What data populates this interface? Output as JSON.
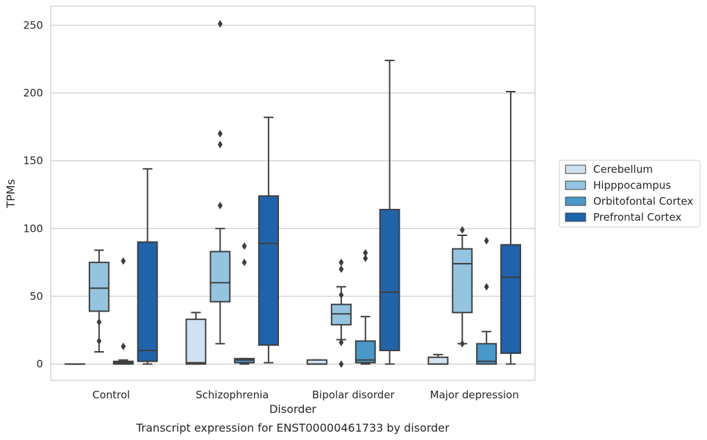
{
  "chart_data": {
    "type": "box",
    "caption": "Transcript expression for ENST00000461733 by disorder",
    "xlabel": "Disorder",
    "ylabel": "TPMs",
    "ylim": [
      -12,
      264
    ],
    "yticks": [
      0,
      50,
      100,
      150,
      200,
      250
    ],
    "grid": true,
    "legend_position": "right",
    "categories": [
      "Control",
      "Schizophrenia",
      "Bipolar disorder",
      "Major depression"
    ],
    "series": [
      {
        "name": "Cerebellum",
        "color": "#d0e1f2",
        "boxes": [
          {
            "min": 0,
            "q1": 0,
            "median": 0,
            "q3": 0,
            "max": 0,
            "outliers": []
          },
          {
            "min": 0,
            "q1": 0,
            "median": 1,
            "q3": 33,
            "max": 38,
            "outliers": []
          },
          {
            "min": 0,
            "q1": 0,
            "median": 0,
            "q3": 3,
            "max": 3,
            "outliers": []
          },
          {
            "min": 0,
            "q1": 0,
            "median": 0,
            "q3": 5,
            "max": 7,
            "outliers": []
          }
        ]
      },
      {
        "name": "Hipppocampus",
        "color": "#94c4df",
        "boxes": [
          {
            "min": 9,
            "q1": 39,
            "median": 56,
            "q3": 75,
            "max": 84,
            "outliers": [
              31,
              17
            ]
          },
          {
            "min": 15,
            "q1": 46,
            "median": 60,
            "q3": 83,
            "max": 100,
            "outliers": [
              251,
              170,
              162,
              117
            ]
          },
          {
            "min": 18,
            "q1": 29,
            "median": 37,
            "q3": 44,
            "max": 57,
            "outliers": [
              75,
              70,
              51,
              16,
              0
            ]
          },
          {
            "min": 15,
            "q1": 38,
            "median": 74,
            "q3": 85,
            "max": 95,
            "outliers": [
              99,
              15
            ]
          }
        ]
      },
      {
        "name": "Orbitofontal Cortex",
        "color": "#4a98c9",
        "boxes": [
          {
            "min": 0,
            "q1": 0,
            "median": 1,
            "q3": 2,
            "max": 3,
            "outliers": [
              76,
              13
            ]
          },
          {
            "min": 0,
            "q1": 1,
            "median": 3,
            "q3": 4,
            "max": 4,
            "outliers": [
              87,
              75
            ]
          },
          {
            "min": 0,
            "q1": 1,
            "median": 3,
            "q3": 17,
            "max": 35,
            "outliers": [
              82,
              78
            ]
          },
          {
            "min": 0,
            "q1": 0,
            "median": 2,
            "q3": 15,
            "max": 24,
            "outliers": [
              91,
              57
            ]
          }
        ]
      },
      {
        "name": "Prefrontal Cortex",
        "color": "#2163aa",
        "boxes": [
          {
            "min": 0,
            "q1": 2,
            "median": 10,
            "q3": 90,
            "max": 144,
            "outliers": []
          },
          {
            "min": 1,
            "q1": 14,
            "median": 89,
            "q3": 124,
            "max": 182,
            "outliers": []
          },
          {
            "min": 0,
            "q1": 10,
            "median": 53,
            "q3": 114,
            "max": 224,
            "outliers": []
          },
          {
            "min": 0,
            "q1": 8,
            "median": 64,
            "q3": 88,
            "max": 201,
            "outliers": []
          }
        ]
      }
    ]
  }
}
